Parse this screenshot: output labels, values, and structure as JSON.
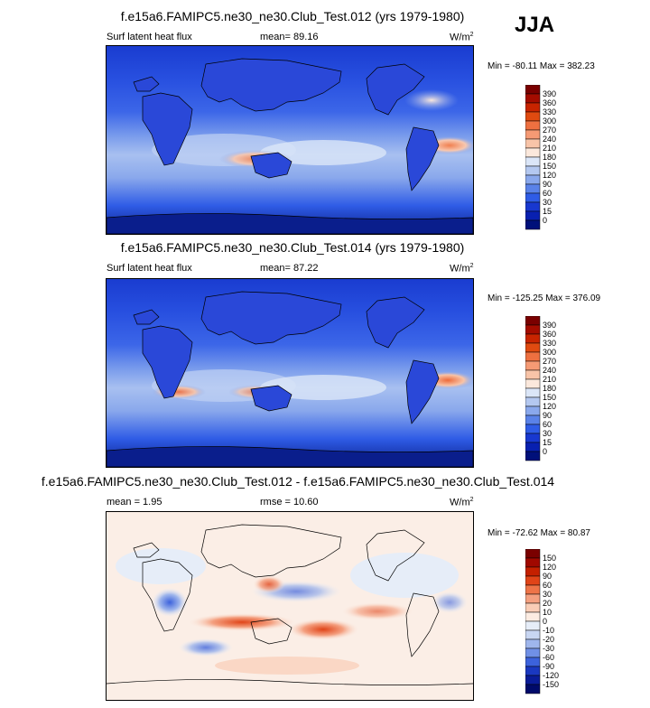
{
  "season": "JJA",
  "panels": [
    {
      "title": "f.e15a6.FAMIPC5.ne30_ne30.Club_Test.012 (yrs 1979-1980)",
      "left_label": "Surf latent heat flux",
      "center_label": "mean=  89.16",
      "units": "W/m",
      "units_sup": "2",
      "minmax": "Min = -80.11 Max = 382.23",
      "colorbar": {
        "labels": [
          "390",
          "360",
          "330",
          "300",
          "270",
          "240",
          "210",
          "180",
          "150",
          "120",
          "90",
          "60",
          "30",
          "15",
          "0"
        ],
        "colors": [
          "#7a0000",
          "#a40c00",
          "#c82400",
          "#e04a10",
          "#ee7040",
          "#f59a74",
          "#f8c4a8",
          "#fbe8dc",
          "#dbe6f8",
          "#b4c8f0",
          "#8aa8ec",
          "#5a82e8",
          "#2f5ce6",
          "#1838d0",
          "#0820b0",
          "#00107a"
        ]
      }
    },
    {
      "title": "f.e15a6.FAMIPC5.ne30_ne30.Club_Test.014 (yrs 1979-1980)",
      "left_label": "Surf latent heat flux",
      "center_label": "mean=  87.22",
      "units": "W/m",
      "units_sup": "2",
      "minmax": "Min = -125.25 Max = 376.09",
      "colorbar": {
        "labels": [
          "390",
          "360",
          "330",
          "300",
          "270",
          "240",
          "210",
          "180",
          "150",
          "120",
          "90",
          "60",
          "30",
          "15",
          "0"
        ],
        "colors": [
          "#7a0000",
          "#a40c00",
          "#c82400",
          "#e04a10",
          "#ee7040",
          "#f59a74",
          "#f8c4a8",
          "#fbe8dc",
          "#dbe6f8",
          "#b4c8f0",
          "#8aa8ec",
          "#5a82e8",
          "#2f5ce6",
          "#1838d0",
          "#0820b0",
          "#00107a"
        ]
      }
    },
    {
      "title": "f.e15a6.FAMIPC5.ne30_ne30.Club_Test.012 - f.e15a6.FAMIPC5.ne30_ne30.Club_Test.014",
      "left_label": "mean =   1.95",
      "center_label": "rmse =  10.60",
      "units": "W/m",
      "units_sup": "2",
      "minmax": "Min = -72.62 Max =  80.87",
      "colorbar": {
        "labels": [
          "150",
          "120",
          "90",
          "60",
          "30",
          "20",
          "10",
          "0",
          "-10",
          "-20",
          "-30",
          "-60",
          "-90",
          "-120",
          "-150"
        ],
        "colors": [
          "#7a0000",
          "#a00800",
          "#c42000",
          "#e04418",
          "#ee7448",
          "#f4a080",
          "#f9cdb6",
          "#fcece2",
          "#e6edf8",
          "#c8d6f2",
          "#9fb6ec",
          "#7090e6",
          "#3c62dc",
          "#1a38c0",
          "#0a1c98",
          "#000a6a"
        ]
      }
    }
  ]
}
